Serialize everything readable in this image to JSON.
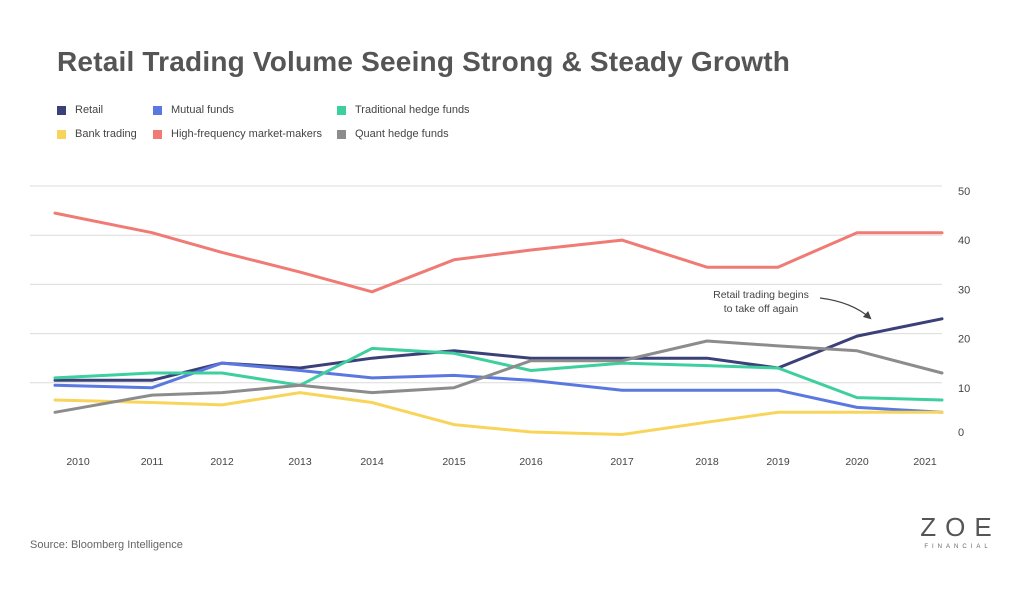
{
  "title": "Retail Trading Volume Seeing Strong & Steady Growth",
  "source": "Source: Bloomberg Intelligence",
  "logo": {
    "main": "ZOE",
    "sub": "FINANCIAL"
  },
  "annotation": {
    "lines": [
      "Retail trading begins",
      "to take off again"
    ]
  },
  "colors": {
    "grid": "#dcdcdc",
    "text": "#444444"
  },
  "chart_data": {
    "type": "line",
    "title": "Retail Trading Volume Seeing Strong & Steady Growth",
    "xlabel": "",
    "ylabel": "",
    "ylim": [
      0,
      50
    ],
    "yticks": [
      "50",
      "40",
      "30",
      "20",
      "10",
      "0"
    ],
    "ytick_values": [
      50,
      40,
      30,
      20,
      10,
      0
    ],
    "x": [
      "2010",
      "2011",
      "2012",
      "2013",
      "2014",
      "2015",
      "2016",
      "2017",
      "2018",
      "2019",
      "2020",
      "2021"
    ],
    "grid": true,
    "legend_position": "top-left",
    "series": [
      {
        "name": "Retail",
        "color": "#3b4078",
        "values": [
          10.5,
          10.5,
          14,
          13,
          15,
          16.5,
          15,
          15,
          15,
          13,
          19.5,
          23
        ]
      },
      {
        "name": "Mutual funds",
        "color": "#5b78e0",
        "values": [
          9.5,
          9,
          14,
          12.5,
          11,
          11.5,
          10.5,
          8.5,
          8.5,
          8.5,
          5,
          4
        ]
      },
      {
        "name": "Traditional hedge funds",
        "color": "#3ecf9e",
        "values": [
          11,
          12,
          12,
          9.5,
          17,
          16,
          12.5,
          14,
          13.5,
          13,
          7,
          6.5
        ]
      },
      {
        "name": "Bank trading",
        "color": "#f8d55a",
        "values": [
          6.5,
          6,
          5.5,
          8,
          6,
          1.5,
          0,
          -0.5,
          2,
          4,
          4,
          4
        ]
      },
      {
        "name": "High-frequency market-makers",
        "color": "#ef7b74",
        "values": [
          44.5,
          40.5,
          36.5,
          32.5,
          28.5,
          35,
          37,
          39,
          33.5,
          33.5,
          40.5,
          40.5
        ]
      },
      {
        "name": "Quant hedge funds",
        "color": "#8c8c8c",
        "values": [
          4,
          7.5,
          8,
          9.5,
          8,
          9,
          14.5,
          14.5,
          18.5,
          17.5,
          16.5,
          12
        ]
      }
    ]
  }
}
